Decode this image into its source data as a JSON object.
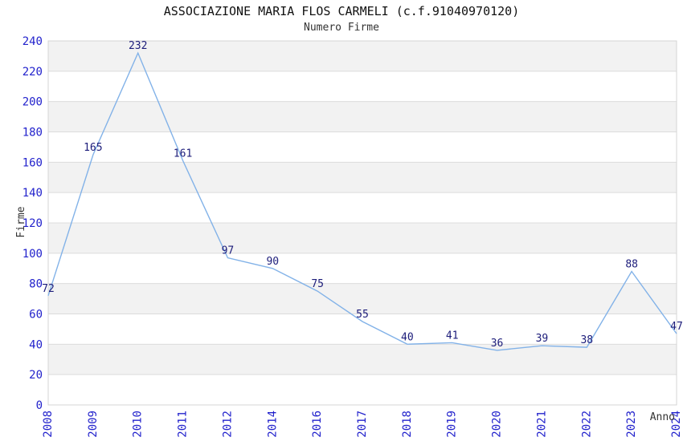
{
  "chart_data": {
    "type": "line",
    "title": "ASSOCIAZIONE MARIA FLOS CARMELI (c.f.91040970120)",
    "subtitle": "Numero Firme",
    "xlabel": "Anno",
    "ylabel": "Firme",
    "categories": [
      "2008",
      "2009",
      "2010",
      "2011",
      "2012",
      "2014",
      "2016",
      "2017",
      "2018",
      "2019",
      "2020",
      "2021",
      "2022",
      "2023",
      "2024"
    ],
    "values": [
      72,
      165,
      232,
      161,
      97,
      90,
      75,
      55,
      40,
      41,
      36,
      39,
      38,
      88,
      47
    ],
    "ylim": [
      0,
      240
    ],
    "ytick_step": 20,
    "yticks": [
      0,
      20,
      40,
      60,
      80,
      100,
      120,
      140,
      160,
      180,
      200,
      220,
      240
    ],
    "grid": "horizontal",
    "background_bands": "alternating-gray",
    "legend": "none",
    "point_labels": true,
    "colors": {
      "line": "#82b2e8",
      "tick_label": "#2222cc",
      "data_label": "#1c1c7a",
      "band": "#f2f2f2",
      "gridline": "#dcdcdc",
      "plot_border": "#d4d4d4",
      "title": "#111111",
      "axis_title": "#333333"
    }
  }
}
